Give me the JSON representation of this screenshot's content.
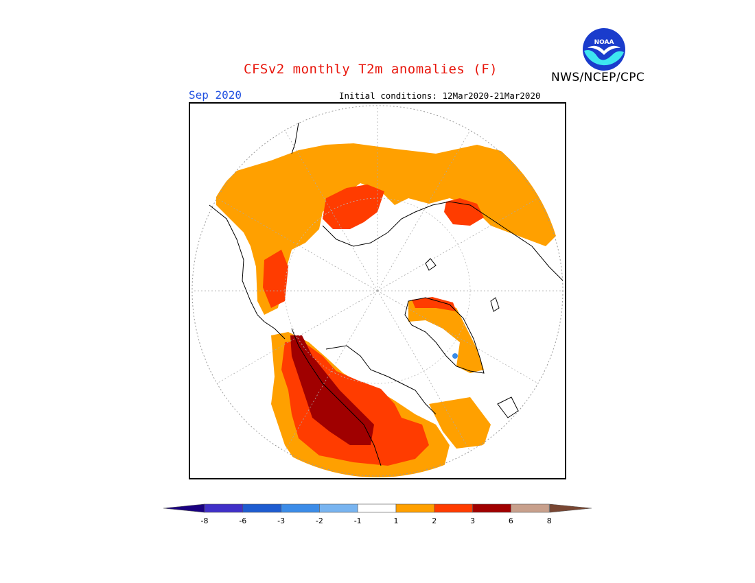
{
  "title": "CFSv2 monthly T2m anomalies (F)",
  "month_label": "Sep 2020",
  "initial_conditions": "Initial conditions: 12Mar2020-21Mar2020",
  "agency": "NWS/NCEP/CPC",
  "logo_text": "NOAA",
  "legend": {
    "tick_labels": [
      "-8",
      "-6",
      "-3",
      "-2",
      "-1",
      "1",
      "2",
      "3",
      "6",
      "8"
    ],
    "colors": [
      "#1a0080",
      "#4030c8",
      "#1e5cd0",
      "#3c8ce8",
      "#78b4f0",
      "#ffffff",
      "#ffa000",
      "#ff3c00",
      "#a00000",
      "#c8a08c",
      "#784632"
    ]
  },
  "map": {
    "projection": "north-polar-stereographic",
    "colors": {
      "anom_1_2": "#ffa000",
      "anom_2_3": "#ff3c00",
      "anom_3_6": "#a00000",
      "anom_neg": "#3c8ce8",
      "neutral": "#ffffff"
    }
  }
}
